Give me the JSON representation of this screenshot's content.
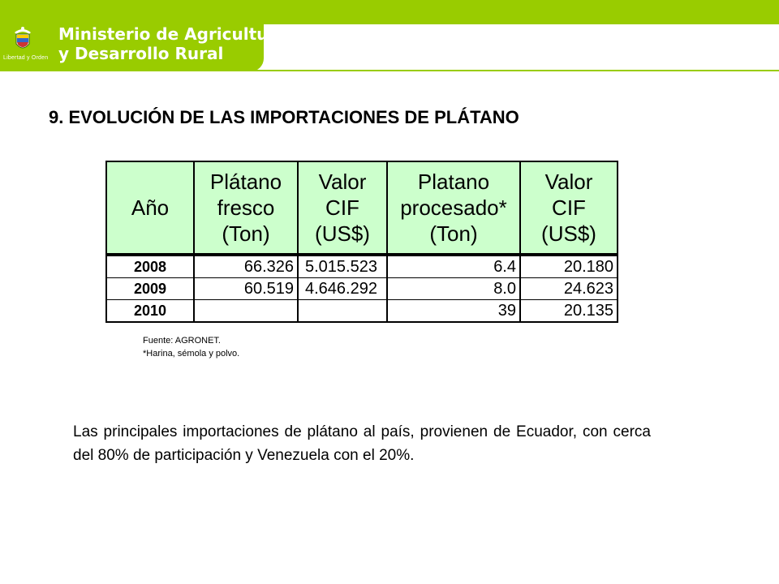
{
  "header": {
    "ministry_line1": "Ministerio de Agricultura",
    "ministry_line2": "y Desarrollo Rural",
    "motto": "Libertad y Orden",
    "brand_color": "#99cc00"
  },
  "title": "9. EVOLUCIÓN DE LAS IMPORTACIONES DE PLÁTANO",
  "table": {
    "headers": [
      [
        "Año"
      ],
      [
        "Plátano",
        "fresco",
        "(Ton)"
      ],
      [
        "Valor",
        "CIF",
        "(US$)"
      ],
      [
        "Platano",
        "procesado*",
        "(Ton)"
      ],
      [
        "Valor",
        "CIF",
        "(US$)"
      ]
    ],
    "rows": [
      {
        "year": "2008",
        "fresh": "66.326",
        "cif_fresh": "5.015.523",
        "processed": "6.4",
        "cif_processed": "20.180"
      },
      {
        "year": "2009",
        "fresh": "60.519",
        "cif_fresh": "4.646.292",
        "processed": "8.0",
        "cif_processed": "24.623"
      },
      {
        "year": "2010",
        "fresh": "",
        "cif_fresh": "",
        "processed": "39",
        "cif_processed": "20.135"
      }
    ],
    "header_bg": "#ccffcc"
  },
  "source": {
    "line1": "Fuente: AGRONET.",
    "line2": "*Harina,  sémola y polvo."
  },
  "paragraph": "Las principales importaciones de plátano al país, provienen de Ecuador, con cerca del 80% de participación y Venezuela con el 20%."
}
